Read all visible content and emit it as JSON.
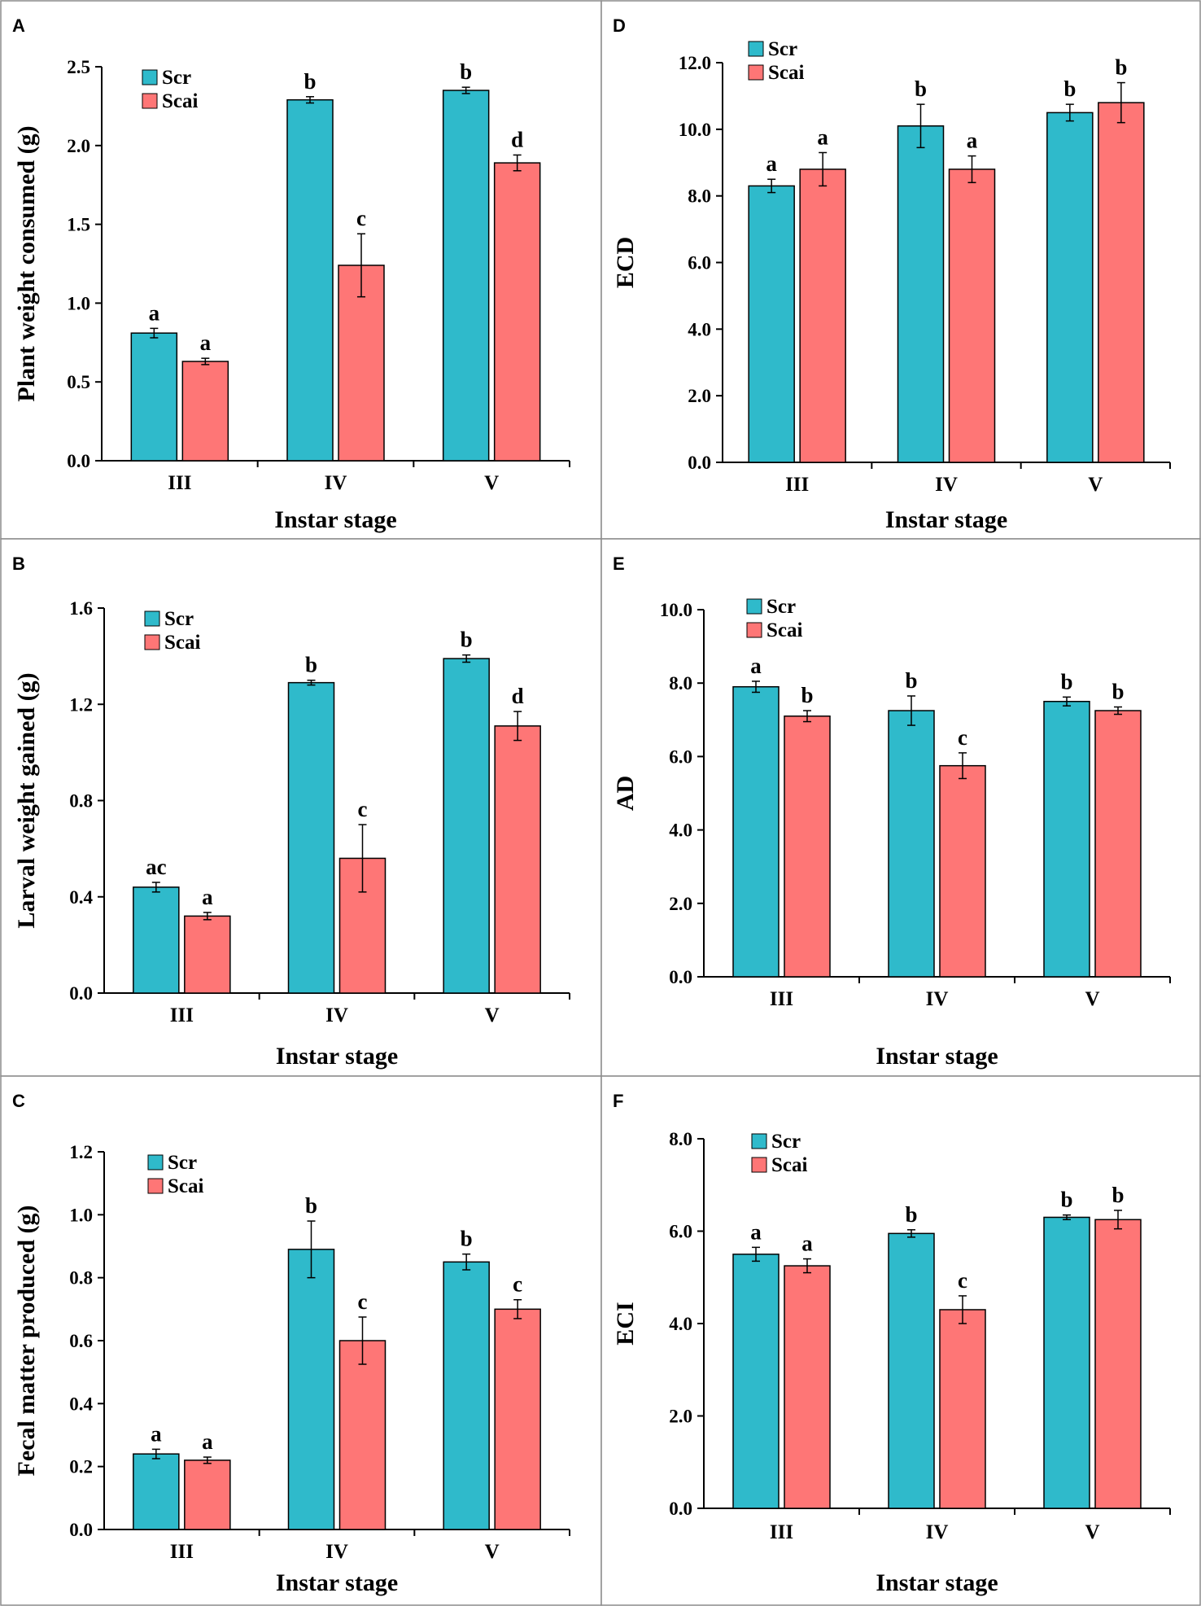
{
  "colors": {
    "scr": "#2fbacb",
    "scai": "#fe7676",
    "frame": "#8c8c8c"
  },
  "legend": [
    "Scr",
    "Scai"
  ],
  "chart_data": [
    {
      "id": "A",
      "panel_label": "A",
      "type": "bar",
      "categories": [
        "III",
        "IV",
        "V"
      ],
      "xlabel": "Instar stage",
      "ylabel": "Plant weight consumed (g)",
      "ylim": [
        0,
        2.5
      ],
      "yticks": [
        "0.0",
        "0.5",
        "1.0",
        "1.5",
        "2.0",
        "2.5"
      ],
      "legend_position": "top-left",
      "grid": false,
      "series": [
        {
          "name": "Scr",
          "values": [
            0.81,
            2.29,
            2.35
          ],
          "errors": [
            0.03,
            0.02,
            0.02
          ],
          "letters": [
            "a",
            "b",
            "b"
          ]
        },
        {
          "name": "Scai",
          "values": [
            0.63,
            1.24,
            1.89
          ],
          "errors": [
            0.02,
            0.2,
            0.05
          ],
          "letters": [
            "a",
            "c",
            "d"
          ]
        }
      ]
    },
    {
      "id": "B",
      "panel_label": "B",
      "type": "bar",
      "categories": [
        "III",
        "IV",
        "V"
      ],
      "xlabel": "Instar stage",
      "ylabel": "Larval weight gained (g)",
      "ylim": [
        0,
        1.6
      ],
      "yticks": [
        "0.0",
        "0.4",
        "0.8",
        "1.2",
        "1.6"
      ],
      "legend_position": "top-left",
      "grid": false,
      "series": [
        {
          "name": "Scr",
          "values": [
            0.44,
            1.29,
            1.39
          ],
          "errors": [
            0.02,
            0.01,
            0.015
          ],
          "letters": [
            "ac",
            "b",
            "b"
          ]
        },
        {
          "name": "Scai",
          "values": [
            0.32,
            0.56,
            1.11
          ],
          "errors": [
            0.015,
            0.14,
            0.06
          ],
          "letters": [
            "a",
            "c",
            "d"
          ]
        }
      ]
    },
    {
      "id": "C",
      "panel_label": "C",
      "type": "bar",
      "categories": [
        "III",
        "IV",
        "V"
      ],
      "xlabel": "Instar stage",
      "ylabel": "Fecal matter produced (g)",
      "ylim": [
        0,
        1.2
      ],
      "yticks": [
        "0.0",
        "0.2",
        "0.4",
        "0.6",
        "0.8",
        "1.0",
        "1.2"
      ],
      "legend_position": "top-left",
      "grid": false,
      "series": [
        {
          "name": "Scr",
          "values": [
            0.24,
            0.89,
            0.85
          ],
          "errors": [
            0.015,
            0.09,
            0.025
          ],
          "letters": [
            "a",
            "b",
            "b"
          ]
        },
        {
          "name": "Scai",
          "values": [
            0.22,
            0.6,
            0.7
          ],
          "errors": [
            0.01,
            0.075,
            0.03
          ],
          "letters": [
            "a",
            "c",
            "c"
          ]
        }
      ]
    },
    {
      "id": "D",
      "panel_label": "D",
      "type": "bar",
      "categories": [
        "III",
        "IV",
        "V"
      ],
      "xlabel": "Instar stage",
      "ylabel": "ECD",
      "ylim": [
        0,
        12
      ],
      "yticks": [
        "0.0",
        "2.0",
        "4.0",
        "6.0",
        "8.0",
        "10.0",
        "12.0"
      ],
      "legend_position": "top-left",
      "grid": false,
      "series": [
        {
          "name": "Scr",
          "values": [
            8.3,
            10.1,
            10.5
          ],
          "errors": [
            0.2,
            0.65,
            0.25
          ],
          "letters": [
            "a",
            "b",
            "b"
          ]
        },
        {
          "name": "Scai",
          "values": [
            8.8,
            8.8,
            10.8
          ],
          "errors": [
            0.5,
            0.4,
            0.6
          ],
          "letters": [
            "a",
            "a",
            "b"
          ]
        }
      ]
    },
    {
      "id": "E",
      "panel_label": "E",
      "type": "bar",
      "categories": [
        "III",
        "IV",
        "V"
      ],
      "xlabel": "Instar stage",
      "ylabel": "AD",
      "ylim": [
        0,
        10
      ],
      "yticks": [
        "0.0",
        "2.0",
        "4.0",
        "6.0",
        "8.0",
        "10.0"
      ],
      "legend_position": "top-left",
      "grid": false,
      "series": [
        {
          "name": "Scr",
          "values": [
            7.9,
            7.25,
            7.5
          ],
          "errors": [
            0.15,
            0.4,
            0.12
          ],
          "letters": [
            "a",
            "b",
            "b"
          ]
        },
        {
          "name": "Scai",
          "values": [
            7.1,
            5.75,
            7.25
          ],
          "errors": [
            0.15,
            0.35,
            0.1
          ],
          "letters": [
            "b",
            "c",
            "b"
          ]
        }
      ]
    },
    {
      "id": "F",
      "panel_label": "F",
      "type": "bar",
      "categories": [
        "III",
        "IV",
        "V"
      ],
      "xlabel": "Instar stage",
      "ylabel": "ECI",
      "ylim": [
        0,
        8
      ],
      "yticks": [
        "0.0",
        "2.0",
        "4.0",
        "6.0",
        "8.0"
      ],
      "legend_position": "top-left",
      "grid": false,
      "series": [
        {
          "name": "Scr",
          "values": [
            5.5,
            5.95,
            6.3
          ],
          "errors": [
            0.15,
            0.08,
            0.05
          ],
          "letters": [
            "a",
            "b",
            "b"
          ]
        },
        {
          "name": "Scai",
          "values": [
            5.25,
            4.3,
            6.25
          ],
          "errors": [
            0.15,
            0.3,
            0.2
          ],
          "letters": [
            "a",
            "c",
            "b"
          ]
        }
      ]
    }
  ]
}
